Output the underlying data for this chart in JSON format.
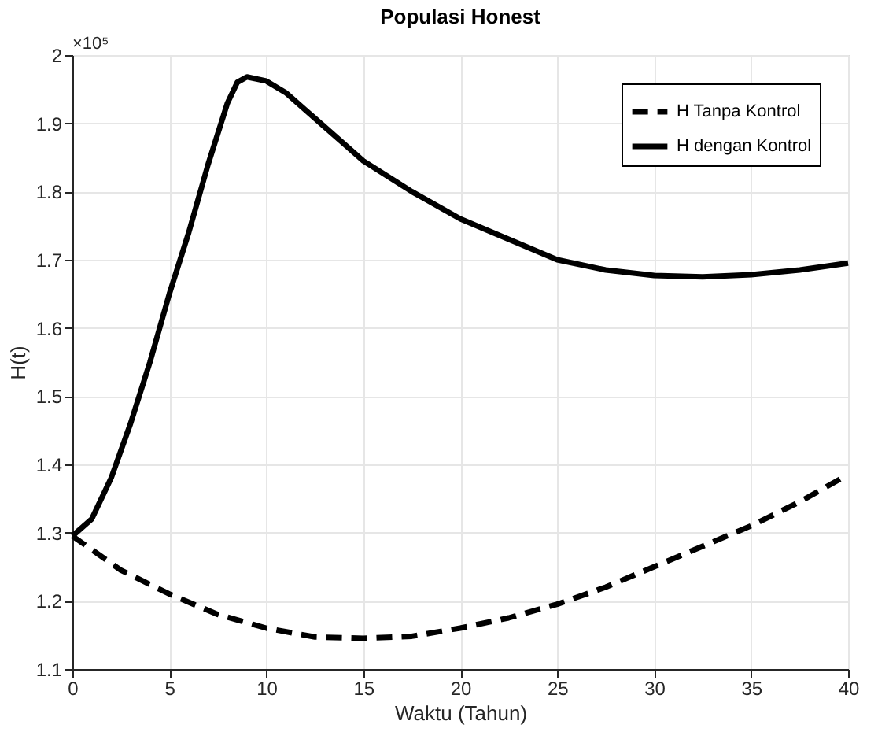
{
  "chart_data": {
    "type": "line",
    "title": "Populasi Honest",
    "xlabel": "Waktu (Tahun)",
    "ylabel": "H(t)",
    "annotations": [
      "×10⁵"
    ],
    "xlim": [
      0,
      40
    ],
    "xticks": [
      0,
      5,
      10,
      15,
      20,
      25,
      30,
      35,
      40
    ],
    "ylim": [
      1.1,
      2
    ],
    "yticks": [
      1.1,
      1.2,
      1.3,
      1.4,
      1.5,
      1.6,
      1.7,
      1.8,
      1.9,
      2
    ],
    "grid": true,
    "legend": "top right",
    "series": [
      {
        "name": "H Tanpa Kontrol",
        "color": "#000000",
        "line_style": "dashed",
        "x": [
          0,
          2.5,
          5,
          7.5,
          10,
          12.5,
          15,
          17.5,
          20,
          22.5,
          25,
          27.5,
          30,
          32.5,
          35,
          37.5,
          40
        ],
        "values": [
          1.295,
          1.245,
          1.21,
          1.18,
          1.16,
          1.147,
          1.145,
          1.148,
          1.16,
          1.175,
          1.195,
          1.22,
          1.25,
          1.28,
          1.31,
          1.345,
          1.385
        ]
      },
      {
        "name": "H dengan Kontrol",
        "color": "#000000",
        "line_style": "solid",
        "x": [
          0,
          1,
          2,
          3,
          4,
          5,
          6,
          7,
          8,
          8.5,
          9,
          10,
          11,
          12,
          13,
          14,
          15,
          17.5,
          20,
          22.5,
          25,
          27.5,
          30,
          32.5,
          35,
          37.5,
          40
        ],
        "values": [
          1.295,
          1.32,
          1.38,
          1.46,
          1.55,
          1.65,
          1.74,
          1.84,
          1.93,
          1.96,
          1.968,
          1.962,
          1.945,
          1.92,
          1.895,
          1.87,
          1.845,
          1.8,
          1.76,
          1.73,
          1.7,
          1.685,
          1.677,
          1.675,
          1.678,
          1.685,
          1.695
        ]
      }
    ]
  }
}
